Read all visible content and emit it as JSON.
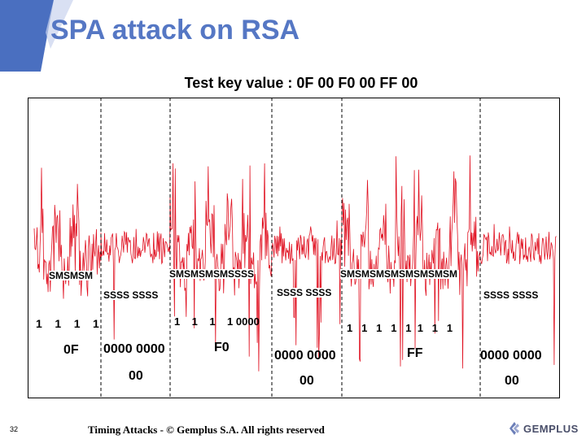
{
  "slide": {
    "title": "SPA attack on RSA",
    "subtitle": "Test key value : 0F 00 F0 00 FF 00",
    "footer": "Timing Attacks - © Gemplus S.A. All rights reserved",
    "page_number": "32",
    "logo_text": "GEMPLUS"
  },
  "trace": {
    "color": "#e01020",
    "segments": [
      {
        "ops": "SMSMSM",
        "bits": "1    1    1    1",
        "hex": "0F"
      },
      {
        "ops": "SSSS SSSS",
        "bits": "0000 0000",
        "hex": "00"
      },
      {
        "ops": "SMSMSMSMSSSS",
        "bits": "1    1    1    1 0000",
        "hex": "F0"
      },
      {
        "ops": "SSSS SSSS",
        "bits": "0000 0000",
        "hex": "00"
      },
      {
        "ops": "SMSMSMSMSMSMSMSM",
        "bits": "1   1   1   1   1  1   1   1",
        "hex": "FF"
      },
      {
        "ops": "SSSS SSSS",
        "bits": "0000 0000",
        "hex": "00"
      }
    ]
  },
  "colors": {
    "title": "#5577c4",
    "corner": "#4a6fc0",
    "trace": "#e01020"
  }
}
